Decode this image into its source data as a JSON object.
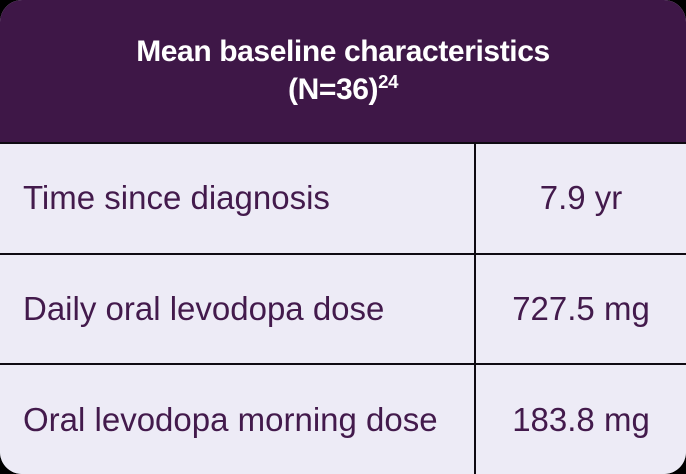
{
  "card": {
    "header": {
      "title_line1": "Mean baseline characteristics",
      "title_line2_base": "(N=36)",
      "title_line2_superscript": "24",
      "bg_color": "#3E1747",
      "text_color": "#FFFFFF"
    },
    "table": {
      "bg_color": "#EDEBF6",
      "text_color": "#431A4C",
      "divider_color": "#0F0A12",
      "rows": [
        {
          "label": "Time since diagnosis",
          "value": "7.9 yr"
        },
        {
          "label": "Daily oral levodopa dose",
          "value": "727.5 mg"
        },
        {
          "label": "Oral levodopa morning dose",
          "value": "183.8 mg"
        }
      ]
    }
  }
}
